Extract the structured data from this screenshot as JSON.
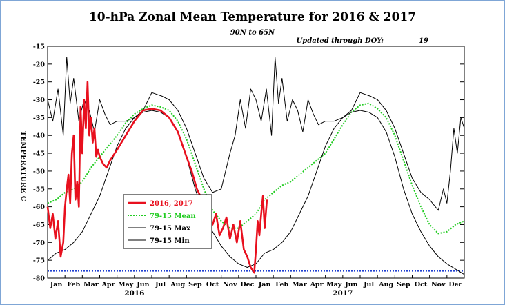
{
  "chart_data": {
    "type": "line",
    "title": "10-hPa Zonal Mean Temperature for 2016 & 2017",
    "subtitle": "90N to 65N",
    "update_note": "Updated through DOY:",
    "update_doy": "19",
    "ylabel": "TEMPERATURE C",
    "ylim": [
      -80,
      -15
    ],
    "yticks": [
      -15,
      -20,
      -25,
      -30,
      -35,
      -40,
      -45,
      -50,
      -55,
      -60,
      -65,
      -70,
      -75,
      -80
    ],
    "ytick_labels": [
      "-15",
      "-20",
      "-25",
      "-30",
      "-35",
      "-40",
      "-45",
      "-50",
      "-55",
      "-60",
      "-65",
      "-70",
      "-75",
      "-80"
    ],
    "x_unit": "month",
    "xlim": [
      0,
      24
    ],
    "month_labels": [
      "Jan",
      "Feb",
      "Mar",
      "Apr",
      "May",
      "Jun",
      "Jul",
      "Aug",
      "Sep",
      "Oct",
      "Nov",
      "Dec",
      "Jan",
      "Feb",
      "Mar",
      "Apr",
      "May",
      "Jun",
      "Jul",
      "Aug",
      "Sep",
      "Oct",
      "Nov",
      "Dec"
    ],
    "year_labels": [
      {
        "label": "2016",
        "x": 5.0
      },
      {
        "label": "2017",
        "x": 17.0
      }
    ],
    "reference_line": {
      "y": -78,
      "color": "#1f3fd1"
    },
    "legend": {
      "placement": "center-left",
      "entries": [
        {
          "label": "2016, 2017",
          "color": "#e8101e"
        },
        {
          "label": "79-15 Mean",
          "color": "#22cc22"
        },
        {
          "label": "79-15 Max",
          "color": "#000000"
        },
        {
          "label": "79-15 Min",
          "color": "#000000"
        }
      ]
    },
    "series": [
      {
        "name": "79-15 Max",
        "color": "#000000",
        "x": [
          0,
          0.3,
          0.6,
          0.9,
          1.1,
          1.3,
          1.5,
          1.8,
          2.1,
          2.4,
          2.7,
          3.0,
          3.3,
          3.6,
          4.0,
          4.5,
          5.0,
          5.5,
          6.0,
          6.3,
          6.6,
          7.0,
          7.5,
          8.0,
          8.5,
          9.0,
          9.5,
          10.0,
          10.5,
          10.8,
          11.1,
          11.4,
          11.7,
          12.0,
          12.3,
          12.6,
          12.9,
          13.1,
          13.3,
          13.5,
          13.8,
          14.1,
          14.4,
          14.7,
          15.0,
          15.3,
          15.6,
          16.0,
          16.5,
          17.0,
          17.5,
          18.0,
          18.3,
          18.6,
          19.0,
          19.5,
          20.0,
          20.5,
          21.0,
          21.5,
          22.0,
          22.5,
          22.8,
          23.0,
          23.2,
          23.4,
          23.6,
          23.8,
          24.0
        ],
        "y": [
          -30,
          -36,
          -27,
          -40,
          -18,
          -31,
          -24,
          -36,
          -30,
          -33,
          -39,
          -30,
          -34,
          -37,
          -36,
          -36,
          -35,
          -33,
          -28,
          -28.5,
          -29,
          -30,
          -33,
          -38,
          -45,
          -52,
          -56,
          -55,
          -45,
          -40,
          -30,
          -38,
          -27,
          -30,
          -36,
          -27,
          -40,
          -18,
          -31,
          -24,
          -36,
          -30,
          -33,
          -39,
          -30,
          -34,
          -37,
          -36,
          -36,
          -35,
          -33,
          -28,
          -28.5,
          -29,
          -30,
          -33,
          -38,
          -45,
          -52,
          -56,
          -58,
          -61,
          -55,
          -59,
          -50,
          -38,
          -45,
          -35,
          -38
        ]
      },
      {
        "name": "79-15 Mean",
        "color": "#22cc22",
        "x": [
          0,
          0.5,
          1.0,
          1.5,
          2.0,
          2.5,
          3.0,
          3.5,
          4.0,
          4.5,
          5.0,
          5.5,
          6.0,
          6.5,
          7.0,
          7.5,
          8.0,
          8.5,
          9.0,
          9.5,
          10.0,
          10.5,
          11.0,
          11.5,
          12.0,
          12.5,
          13.0,
          13.5,
          14.0,
          14.5,
          15.0,
          15.5,
          16.0,
          16.5,
          17.0,
          17.5,
          18.0,
          18.5,
          19.0,
          19.5,
          20.0,
          20.5,
          21.0,
          21.5,
          22.0,
          22.5,
          23.0,
          23.5,
          24.0
        ],
        "y": [
          -59,
          -58,
          -56,
          -55,
          -53,
          -49,
          -46,
          -43,
          -40,
          -36.5,
          -34,
          -32.5,
          -31.5,
          -32,
          -33,
          -36,
          -41,
          -48,
          -55,
          -61,
          -64,
          -66,
          -66,
          -64,
          -62,
          -58,
          -56,
          -54,
          -53,
          -51,
          -49,
          -47,
          -45,
          -41,
          -37,
          -33.5,
          -31.5,
          -31,
          -32.5,
          -35,
          -40,
          -47,
          -54,
          -60,
          -65,
          -67.5,
          -67,
          -65,
          -64
        ]
      },
      {
        "name": "79-15 Min",
        "color": "#000000",
        "x": [
          0,
          0.5,
          1.0,
          1.5,
          2.0,
          2.5,
          3.0,
          3.5,
          4.0,
          4.5,
          5.0,
          5.5,
          6.0,
          6.5,
          7.0,
          7.5,
          8.0,
          8.5,
          9.0,
          9.5,
          10.0,
          10.5,
          11.0,
          11.5,
          12.0,
          12.5,
          13.0,
          13.5,
          14.0,
          14.5,
          15.0,
          15.5,
          16.0,
          16.5,
          17.0,
          17.5,
          18.0,
          18.5,
          19.0,
          19.5,
          20.0,
          20.5,
          21.0,
          21.5,
          22.0,
          22.5,
          23.0,
          23.5,
          24.0
        ],
        "y": [
          -75,
          -73,
          -72,
          -70,
          -67,
          -62,
          -57,
          -50,
          -43,
          -38,
          -35,
          -33.5,
          -33,
          -33.5,
          -35,
          -39,
          -46,
          -55,
          -62,
          -67,
          -71,
          -74,
          -76,
          -77,
          -76,
          -73,
          -72,
          -70,
          -67,
          -62,
          -57,
          -50,
          -43,
          -38,
          -35,
          -33.5,
          -33,
          -33.5,
          -35,
          -39,
          -46,
          -55,
          -62,
          -67,
          -71,
          -74,
          -76,
          -77.5,
          -79
        ]
      },
      {
        "name": "2016, 2017",
        "color": "#e8101e",
        "x": [
          0,
          0.15,
          0.3,
          0.45,
          0.6,
          0.75,
          0.9,
          1.0,
          1.1,
          1.2,
          1.3,
          1.4,
          1.5,
          1.6,
          1.7,
          1.8,
          1.9,
          2.0,
          2.1,
          2.2,
          2.3,
          2.4,
          2.5,
          2.6,
          2.7,
          2.8,
          2.9,
          3.0,
          3.2,
          3.4,
          3.6,
          4.0,
          4.5,
          5.0,
          5.5,
          6.0,
          6.5,
          7.0,
          7.5,
          8.0,
          8.3,
          8.6,
          8.9,
          9.2,
          9.5,
          9.7,
          9.9,
          10.1,
          10.3,
          10.5,
          10.7,
          10.9,
          11.1,
          11.3,
          11.5,
          11.7,
          11.9,
          12.0,
          12.1,
          12.2,
          12.3,
          12.4,
          12.5,
          12.6,
          12.63
        ],
        "y": [
          -60,
          -66,
          -62,
          -69,
          -64,
          -74,
          -70,
          -60,
          -55,
          -51,
          -59,
          -45,
          -40,
          -58,
          -53,
          -60,
          -32,
          -45,
          -30,
          -38,
          -25,
          -40,
          -35,
          -42,
          -38,
          -46,
          -44,
          -46,
          -48,
          -49,
          -47,
          -44,
          -40,
          -36,
          -33,
          -32.5,
          -33,
          -35,
          -39,
          -46,
          -50,
          -55,
          -58,
          -61,
          -65,
          -62,
          -68,
          -66,
          -63,
          -69,
          -65,
          -70,
          -64,
          -72,
          -74,
          -77,
          -78.5,
          -72,
          -64,
          -68,
          -62,
          -57,
          -66,
          -60,
          -58
        ]
      }
    ]
  }
}
